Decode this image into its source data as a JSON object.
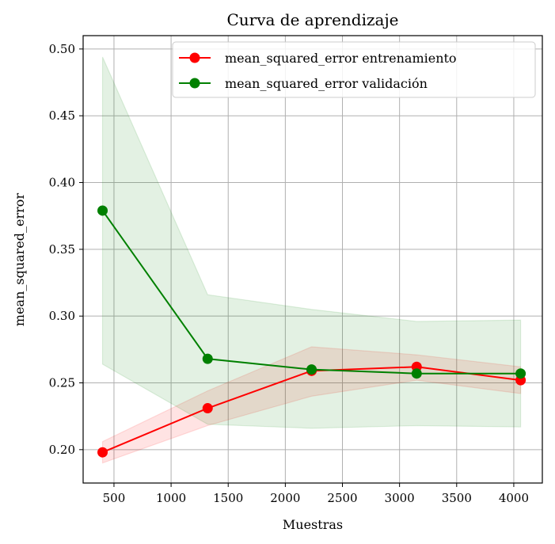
{
  "chart_data": {
    "type": "line",
    "title": "Curva de aprendizaje",
    "xlabel": "Muestras",
    "ylabel": "mean_squared_error",
    "xlim": [
      230,
      4250
    ],
    "ylim": [
      0.175,
      0.51
    ],
    "xticks": [
      500,
      1000,
      1500,
      2000,
      2500,
      3000,
      3500,
      4000
    ],
    "yticks": [
      0.2,
      0.25,
      0.3,
      0.35,
      0.4,
      0.45,
      0.5
    ],
    "grid": true,
    "legend_position": "top-right",
    "x": [
      400,
      1320,
      2230,
      3150,
      4060
    ],
    "series": [
      {
        "name": "mean_squared_error entrenamiento",
        "color": "#ff0000",
        "band_color": "#ff0000",
        "values": [
          0.198,
          0.231,
          0.259,
          0.262,
          0.252
        ],
        "band_upper": [
          0.206,
          0.244,
          0.277,
          0.271,
          0.262
        ],
        "band_lower": [
          0.19,
          0.218,
          0.24,
          0.252,
          0.242
        ]
      },
      {
        "name": "mean_squared_error validación",
        "color": "#008000",
        "band_color": "#008000",
        "values": [
          0.379,
          0.268,
          0.26,
          0.257,
          0.257
        ],
        "band_upper": [
          0.494,
          0.316,
          0.305,
          0.296,
          0.297
        ],
        "band_lower": [
          0.264,
          0.219,
          0.216,
          0.218,
          0.217
        ]
      }
    ]
  }
}
